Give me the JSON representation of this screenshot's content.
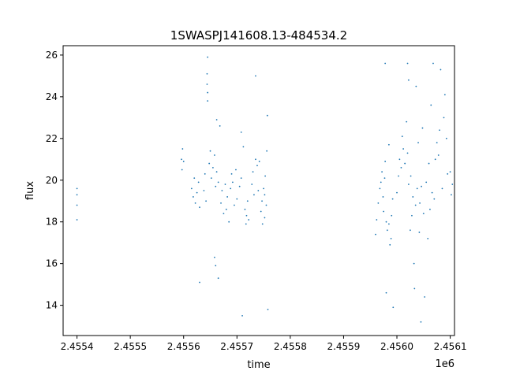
{
  "chart_data": {
    "type": "scatter",
    "title": "1SWASPJ141608.13-484534.2",
    "xlabel": "time",
    "ylabel": "flux",
    "x_offset_label": "1e6",
    "xlim": [
      2455374,
      2456108
    ],
    "ylim": [
      12.55,
      26.45
    ],
    "xticks": [
      2455400,
      2455500,
      2455600,
      2455700,
      2455800,
      2455900,
      2456000,
      2456100
    ],
    "xtick_labels": [
      "2.4554",
      "2.4555",
      "2.4556",
      "2.4557",
      "2.4558",
      "2.4559",
      "2.4560",
      "2.4561"
    ],
    "yticks": [
      14,
      16,
      18,
      20,
      22,
      24,
      26
    ],
    "ytick_labels": [
      "14",
      "16",
      "18",
      "20",
      "22",
      "24",
      "26"
    ],
    "grid": false,
    "marker_color": "#1f77b4",
    "series": [
      {
        "values": [
          [
            2455400,
            19.3
          ],
          [
            2455400,
            18.8
          ],
          [
            2455400,
            19.6
          ],
          [
            2455400,
            18.1
          ],
          [
            2455596,
            21.0
          ],
          [
            2455597,
            20.5
          ],
          [
            2455598,
            21.5
          ],
          [
            2455600,
            20.9
          ],
          [
            2455615,
            19.6
          ],
          [
            2455618,
            19.2
          ],
          [
            2455620,
            20.1
          ],
          [
            2455622,
            18.9
          ],
          [
            2455625,
            19.4
          ],
          [
            2455628,
            19.9
          ],
          [
            2455630,
            18.7
          ],
          [
            2455638,
            19.5
          ],
          [
            2455640,
            20.3
          ],
          [
            2455642,
            19.0
          ],
          [
            2455644,
            24.6
          ],
          [
            2455644,
            25.1
          ],
          [
            2455645,
            25.9
          ],
          [
            2455645,
            23.8
          ],
          [
            2455645,
            24.2
          ],
          [
            2455648,
            20.8
          ],
          [
            2455650,
            21.4
          ],
          [
            2455652,
            20.1
          ],
          [
            2455655,
            20.6
          ],
          [
            2455658,
            21.2
          ],
          [
            2455660,
            19.7
          ],
          [
            2455662,
            20.4
          ],
          [
            2455665,
            19.9
          ],
          [
            2455658,
            16.3
          ],
          [
            2455660,
            15.9
          ],
          [
            2455665,
            15.3
          ],
          [
            2455630,
            15.1
          ],
          [
            2455662,
            22.9
          ],
          [
            2455668,
            22.6
          ],
          [
            2455670,
            18.9
          ],
          [
            2455672,
            19.5
          ],
          [
            2455675,
            18.4
          ],
          [
            2455678,
            19.8
          ],
          [
            2455680,
            18.6
          ],
          [
            2455682,
            19.2
          ],
          [
            2455685,
            18.0
          ],
          [
            2455688,
            19.6
          ],
          [
            2455690,
            20.3
          ],
          [
            2455692,
            19.9
          ],
          [
            2455695,
            18.8
          ],
          [
            2455698,
            20.5
          ],
          [
            2455700,
            19.1
          ],
          [
            2455705,
            19.7
          ],
          [
            2455708,
            20.1
          ],
          [
            2455710,
            13.5
          ],
          [
            2455708,
            22.3
          ],
          [
            2455712,
            21.6
          ],
          [
            2455715,
            18.6
          ],
          [
            2455717,
            17.9
          ],
          [
            2455718,
            18.3
          ],
          [
            2455720,
            19.0
          ],
          [
            2455722,
            18.1
          ],
          [
            2455728,
            19.8
          ],
          [
            2455730,
            20.4
          ],
          [
            2455732,
            19.3
          ],
          [
            2455735,
            21.0
          ],
          [
            2455738,
            20.7
          ],
          [
            2455740,
            19.5
          ],
          [
            2455742,
            20.9
          ],
          [
            2455745,
            18.5
          ],
          [
            2455747,
            19.0
          ],
          [
            2455748,
            17.9
          ],
          [
            2455750,
            19.6
          ],
          [
            2455752,
            18.2
          ],
          [
            2455753,
            20.2
          ],
          [
            2455755,
            18.8
          ],
          [
            2455756,
            21.4
          ],
          [
            2455757,
            23.1
          ],
          [
            2455735,
            25.0
          ],
          [
            2455752,
            19.3
          ],
          [
            2455758,
            13.8
          ],
          [
            2455960,
            17.4
          ],
          [
            2455962,
            18.1
          ],
          [
            2455965,
            18.9
          ],
          [
            2455968,
            19.6
          ],
          [
            2455970,
            19.9
          ],
          [
            2455972,
            20.4
          ],
          [
            2455974,
            19.2
          ],
          [
            2455975,
            18.5
          ],
          [
            2455977,
            20.1
          ],
          [
            2455978,
            20.9
          ],
          [
            2455980,
            18.0
          ],
          [
            2455982,
            17.6
          ],
          [
            2455985,
            17.9
          ],
          [
            2455987,
            16.9
          ],
          [
            2455989,
            17.2
          ],
          [
            2455990,
            18.3
          ],
          [
            2455978,
            25.6
          ],
          [
            2455980,
            14.6
          ],
          [
            2455985,
            21.7
          ],
          [
            2455992,
            19.1
          ],
          [
            2455993,
            13.9
          ],
          [
            2456000,
            19.4
          ],
          [
            2456003,
            20.2
          ],
          [
            2456005,
            21.0
          ],
          [
            2456008,
            20.6
          ],
          [
            2456010,
            22.1
          ],
          [
            2456012,
            21.5
          ],
          [
            2456015,
            20.8
          ],
          [
            2456018,
            22.8
          ],
          [
            2456020,
            21.3
          ],
          [
            2456022,
            19.8
          ],
          [
            2456020,
            25.6
          ],
          [
            2456022,
            24.8
          ],
          [
            2456025,
            17.6
          ],
          [
            2456026,
            20.2
          ],
          [
            2456028,
            18.3
          ],
          [
            2456030,
            19.2
          ],
          [
            2456032,
            16.0
          ],
          [
            2456033,
            14.8
          ],
          [
            2456035,
            18.8
          ],
          [
            2456036,
            24.5
          ],
          [
            2456038,
            19.6
          ],
          [
            2456040,
            21.8
          ],
          [
            2456042,
            17.5
          ],
          [
            2456043,
            18.9
          ],
          [
            2456045,
            13.2
          ],
          [
            2456046,
            19.7
          ],
          [
            2456048,
            22.5
          ],
          [
            2456050,
            18.4
          ],
          [
            2456052,
            14.4
          ],
          [
            2456055,
            19.9
          ],
          [
            2456058,
            17.2
          ],
          [
            2456060,
            20.8
          ],
          [
            2456062,
            18.6
          ],
          [
            2456064,
            23.6
          ],
          [
            2456066,
            19.4
          ],
          [
            2456068,
            25.6
          ],
          [
            2456070,
            19.1
          ],
          [
            2456072,
            21.0
          ],
          [
            2456075,
            21.8
          ],
          [
            2456078,
            21.2
          ],
          [
            2456080,
            22.4
          ],
          [
            2456082,
            25.3
          ],
          [
            2456085,
            19.6
          ],
          [
            2456088,
            23.0
          ],
          [
            2456090,
            24.1
          ],
          [
            2456093,
            22.0
          ],
          [
            2456095,
            20.3
          ],
          [
            2456100,
            20.4
          ],
          [
            2456102,
            19.3
          ],
          [
            2456104,
            19.8
          ]
        ]
      }
    ]
  }
}
